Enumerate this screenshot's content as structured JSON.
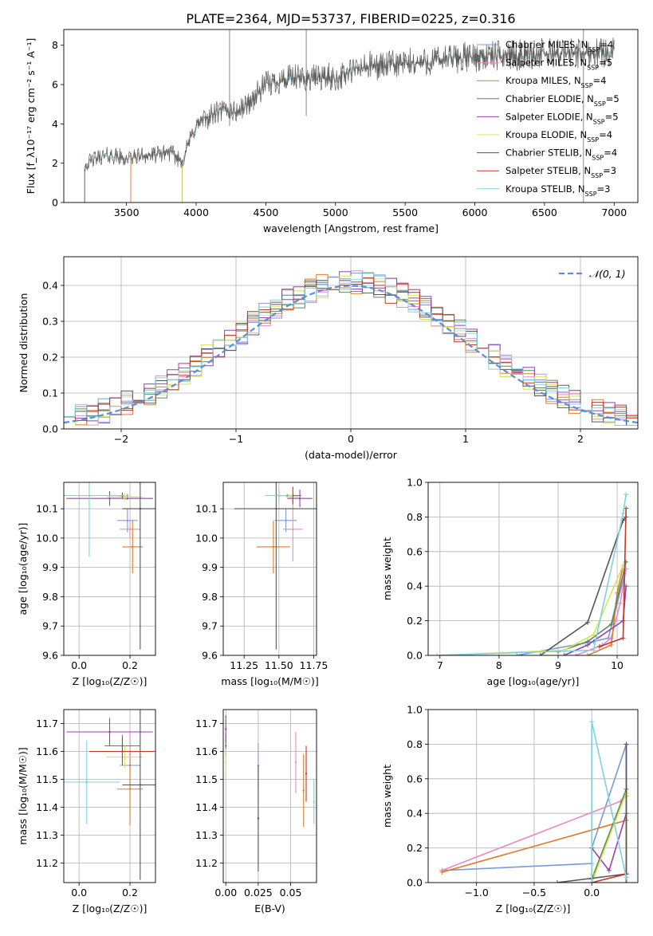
{
  "page": {
    "title": "PLATE=2364, MJD=53737, FIBERID=0225, z=0.316"
  },
  "colors": {
    "chabrier_miles": "#7b9bd6",
    "salpeter_miles": "#e78ac3",
    "kroupa_miles": "#e07a2a",
    "chabrier_elodie": "#5a8a5a",
    "salpeter_elodie": "#9b3fb5",
    "kroupa_elodie": "#d8e35a",
    "chabrier_stelib": "#555555",
    "salpeter_stelib": "#c0392b",
    "kroupa_stelib": "#7fd0e0",
    "gaussian": "#5b8ddb",
    "grid": "#b0b0b0"
  },
  "chart_data": [
    {
      "id": "spectrum",
      "type": "line",
      "xlabel": "wavelength [Angstrom, rest frame]",
      "ylabel": "Flux [f_λ10⁻¹⁷ erg cm⁻² s⁻¹ A⁻¹]",
      "xlim": [
        3050,
        7170
      ],
      "ylim": [
        0,
        8.8
      ],
      "xticks": [
        3500,
        4000,
        4500,
        5000,
        5500,
        6000,
        6500,
        7000
      ],
      "yticks": [
        0,
        2,
        4,
        6,
        8
      ],
      "grid": false,
      "legend_position": "top-right",
      "continuum": {
        "x": [
          3200,
          3300,
          3400,
          3500,
          3600,
          3700,
          3800,
          3900,
          3950,
          4000,
          4100,
          4200,
          4300,
          4400,
          4500,
          4600,
          4700,
          4800,
          4900,
          5000,
          5200,
          5400,
          5600,
          5800,
          6000,
          6200,
          6400,
          6600,
          6800,
          7000
        ],
        "y": [
          1.9,
          2.3,
          2.4,
          2.2,
          2.4,
          2.4,
          2.6,
          2.1,
          3.1,
          3.9,
          4.4,
          4.7,
          4.6,
          5.2,
          6.0,
          6.2,
          6.3,
          6.3,
          6.4,
          6.3,
          6.9,
          7.0,
          7.1,
          7.3,
          7.4,
          7.5,
          7.5,
          7.6,
          7.6,
          7.7
        ]
      },
      "series": [
        {
          "name": "Chabrier MILES, N_SSP=4",
          "label": "Chabrier MILES, N",
          "sub": "SSP",
          "suffix": "=4",
          "color_key": "chabrier_miles",
          "xstart": 3530
        },
        {
          "name": "Salpeter MILES, N_SSP=5",
          "label": "Salpeter MILES, N",
          "sub": "SSP",
          "suffix": "=5",
          "color_key": "salpeter_miles",
          "xstart": 3530
        },
        {
          "name": "Kroupa MILES, N_SSP=4",
          "label": "Kroupa MILES, N",
          "sub": "SSP",
          "suffix": "=4",
          "color_key": "kroupa_miles",
          "xstart": 3530
        },
        {
          "name": "Chabrier ELODIE, N_SSP=5",
          "label": "Chabrier ELODIE, N",
          "sub": "SSP",
          "suffix": "=5",
          "color_key": "chabrier_elodie",
          "xstart": 3900
        },
        {
          "name": "Salpeter ELODIE, N_SSP=5",
          "label": "Salpeter ELODIE, N",
          "sub": "SSP",
          "suffix": "=5",
          "color_key": "salpeter_elodie",
          "xstart": 3900
        },
        {
          "name": "Kroupa ELODIE, N_SSP=4",
          "label": "Kroupa ELODIE, N",
          "sub": "SSP",
          "suffix": "=4",
          "color_key": "kroupa_elodie",
          "xstart": 3900
        },
        {
          "name": "Chabrier STELIB, N_SSP=4",
          "label": "Chabrier STELIB, N",
          "sub": "SSP",
          "suffix": "=4",
          "color_key": "chabrier_stelib",
          "xstart": 3200
        },
        {
          "name": "Salpeter STELIB, N_SSP=3",
          "label": "Salpeter STELIB, N",
          "sub": "SSP",
          "suffix": "=3",
          "color_key": "salpeter_stelib",
          "xstart": 3200
        },
        {
          "name": "Kroupa STELIB, N_SSP=3",
          "label": "Kroupa STELIB, N",
          "sub": "SSP",
          "suffix": "=3",
          "color_key": "kroupa_stelib",
          "xstart": 3200
        }
      ]
    },
    {
      "id": "residuals",
      "type": "line",
      "xlabel": "(data-model)/error",
      "ylabel": "Normed distribution",
      "xlim": [
        -2.5,
        2.5
      ],
      "ylim": [
        0,
        0.48
      ],
      "xticks": [
        -2,
        -1,
        0,
        1,
        2
      ],
      "yticks": [
        0.0,
        0.1,
        0.2,
        0.3,
        0.4
      ],
      "grid": true,
      "legend_position": "top-right",
      "reference": {
        "name": "N(0,1)",
        "label": "𝒩(0, 1)",
        "mean": 0,
        "sigma": 1
      },
      "bin_width": 0.1,
      "histogram_series_colors": [
        "chabrier_miles",
        "salpeter_miles",
        "kroupa_miles",
        "chabrier_elodie",
        "salpeter_elodie",
        "kroupa_elodie",
        "chabrier_stelib",
        "salpeter_stelib",
        "kroupa_stelib"
      ]
    },
    {
      "id": "age-z",
      "type": "scatter",
      "xlabel": "Z [log₁₀(Z/Z☉)]",
      "ylabel": "age  [log₁₀(age/yr)]",
      "xlim": [
        -0.06,
        0.3
      ],
      "ylim": [
        9.6,
        10.19
      ],
      "xticks": [
        0.0,
        0.2
      ],
      "yticks": [
        9.6,
        9.7,
        9.8,
        9.9,
        10.0,
        10.1
      ],
      "grid": true,
      "points": [
        {
          "key": "chabrier_miles",
          "x": 0.19,
          "y": 10.06,
          "xerr": 0.04,
          "yerr": 0.04
        },
        {
          "key": "salpeter_miles",
          "x": 0.2,
          "y": 10.03,
          "xerr": 0.04,
          "yerr": 0.03
        },
        {
          "key": "kroupa_miles",
          "x": 0.21,
          "y": 9.97,
          "xerr": 0.04,
          "yerr": 0.09
        },
        {
          "key": "chabrier_elodie",
          "x": 0.19,
          "y": 10.14,
          "xerr": 0.04,
          "yerr": 0.01
        },
        {
          "key": "salpeter_elodie",
          "x": 0.12,
          "y": 10.135,
          "xerr": 0.17,
          "yerr": 0.025
        },
        {
          "key": "kroupa_elodie",
          "x": 0.18,
          "y": 10.14,
          "xerr": 0.07,
          "yerr": 0.01
        },
        {
          "key": "chabrier_stelib",
          "x": 0.24,
          "y": 10.1,
          "xerr": 0.07,
          "yerr": 0.48
        },
        {
          "key": "salpeter_stelib",
          "x": 0.17,
          "y": 10.145,
          "xerr": 0.01,
          "yerr": 0.01
        },
        {
          "key": "kroupa_stelib",
          "x": 0.04,
          "y": 10.145,
          "xerr": 0.14,
          "yerr": 0.21
        }
      ]
    },
    {
      "id": "age-mass",
      "type": "scatter",
      "xlabel": "mass [log₁₀(M/M☉)]",
      "ylabel": "",
      "xlim": [
        11.1,
        11.77
      ],
      "ylim": [
        9.6,
        10.19
      ],
      "xticks": [
        11.25,
        11.5,
        11.75
      ],
      "yticks": [
        9.6,
        9.7,
        9.8,
        9.9,
        10.0,
        10.1
      ],
      "grid": true,
      "points": [
        {
          "key": "chabrier_miles",
          "x": 11.55,
          "y": 10.06,
          "xerr": 0.08,
          "yerr": 0.04
        },
        {
          "key": "salpeter_miles",
          "x": 11.6,
          "y": 10.03,
          "xerr": 0.07,
          "yerr": 0.11
        },
        {
          "key": "kroupa_miles",
          "x": 11.46,
          "y": 9.97,
          "xerr": 0.12,
          "yerr": 0.09
        },
        {
          "key": "chabrier_elodie",
          "x": 11.56,
          "y": 10.145,
          "xerr": 0.1,
          "yerr": 0.005
        },
        {
          "key": "salpeter_elodie",
          "x": 11.65,
          "y": 10.135,
          "xerr": 0.09,
          "yerr": 0.03
        },
        {
          "key": "kroupa_elodie",
          "x": 11.6,
          "y": 10.14,
          "xerr": 0.05,
          "yerr": 0.01
        },
        {
          "key": "chabrier_stelib",
          "x": 11.48,
          "y": 10.1,
          "xerr": 0.3,
          "yerr": 0.48
        },
        {
          "key": "salpeter_stelib",
          "x": 11.6,
          "y": 10.145,
          "xerr": 0.01,
          "yerr": 0.03
        },
        {
          "key": "kroupa_stelib",
          "x": 11.5,
          "y": 10.145,
          "xerr": 0.1,
          "yerr": 0.02
        }
      ]
    },
    {
      "id": "weight-age",
      "type": "line",
      "xlabel": "age  [log₁₀(age/yr)]",
      "ylabel": "mass weight",
      "xlim": [
        6.8,
        10.35
      ],
      "ylim": [
        0,
        1.0
      ],
      "xticks": [
        7,
        8,
        9,
        10
      ],
      "yticks": [
        0.0,
        0.2,
        0.4,
        0.6,
        0.8,
        1.0
      ],
      "grid": true,
      "series": [
        {
          "key": "chabrier_miles",
          "x": [
            8.3,
            9.6,
            9.85,
            10.0,
            10.15
          ],
          "y": [
            0.0,
            0.08,
            0.1,
            0.3,
            0.5
          ]
        },
        {
          "key": "salpeter_miles",
          "x": [
            9.3,
            9.75,
            9.9,
            10.05,
            10.15
          ],
          "y": [
            0.0,
            0.06,
            0.1,
            0.3,
            0.5
          ]
        },
        {
          "key": "kroupa_miles",
          "x": [
            9.5,
            9.9,
            10.0,
            10.1
          ],
          "y": [
            0.0,
            0.06,
            0.36,
            0.52
          ]
        },
        {
          "key": "chabrier_elodie",
          "x": [
            9.0,
            9.5,
            9.9,
            10.15
          ],
          "y": [
            0.02,
            0.08,
            0.18,
            0.54
          ]
        },
        {
          "key": "salpeter_elodie",
          "x": [
            9.1,
            9.5,
            10.1,
            10.15
          ],
          "y": [
            0.0,
            0.06,
            0.2,
            0.4
          ]
        },
        {
          "key": "kroupa_elodie",
          "x": [
            7.0,
            9.1,
            9.6,
            10.1
          ],
          "y": [
            0.0,
            0.03,
            0.12,
            0.52
          ]
        },
        {
          "key": "chabrier_stelib",
          "x": [
            8.7,
            9.5,
            10.1,
            10.15
          ],
          "y": [
            0.0,
            0.19,
            0.78,
            0.8
          ]
        },
        {
          "key": "salpeter_stelib",
          "x": [
            9.7,
            10.1,
            10.15
          ],
          "y": [
            0.05,
            0.1,
            0.85
          ]
        },
        {
          "key": "kroupa_stelib",
          "x": [
            6.95,
            9.6,
            10.1,
            10.15
          ],
          "y": [
            0.0,
            0.03,
            0.82,
            0.93
          ]
        }
      ]
    },
    {
      "id": "mass-z",
      "type": "scatter",
      "xlabel": "Z [log₁₀(Z/Z☉)]",
      "ylabel": "mass [log₁₀(M/M☉)]",
      "xlim": [
        -0.06,
        0.3
      ],
      "ylim": [
        11.13,
        11.75
      ],
      "xticks": [
        0.0,
        0.2
      ],
      "yticks": [
        11.2,
        11.3,
        11.4,
        11.5,
        11.6,
        11.7
      ],
      "grid": true,
      "points": [
        {
          "key": "chabrier_miles",
          "x": 0.2,
          "y": 11.55,
          "xerr": 0.04,
          "yerr": 0.08
        },
        {
          "key": "salpeter_miles",
          "x": 0.2,
          "y": 11.6,
          "xerr": 0.04,
          "yerr": 0.07
        },
        {
          "key": "kroupa_miles",
          "x": 0.2,
          "y": 11.465,
          "xerr": 0.05,
          "yerr": 0.13
        },
        {
          "key": "chabrier_elodie",
          "x": 0.17,
          "y": 11.62,
          "xerr": 0.07,
          "yerr": 0.04
        },
        {
          "key": "salpeter_elodie",
          "x": 0.12,
          "y": 11.67,
          "xerr": 0.17,
          "yerr": 0.05
        },
        {
          "key": "kroupa_elodie",
          "x": 0.18,
          "y": 11.58,
          "xerr": 0.07,
          "yerr": 0.04
        },
        {
          "key": "chabrier_stelib",
          "x": 0.24,
          "y": 11.48,
          "xerr": 0.07,
          "yerr": 0.34
        },
        {
          "key": "salpeter_stelib",
          "x": 0.17,
          "y": 11.6,
          "xerr": 0.13,
          "yerr": 0.05
        },
        {
          "key": "kroupa_stelib",
          "x": 0.03,
          "y": 11.49,
          "xerr": 0.13,
          "yerr": 0.15
        }
      ]
    },
    {
      "id": "mass-ebv",
      "type": "scatter",
      "xlabel": "E(B-V)",
      "ylabel": "",
      "xlim": [
        -0.002,
        0.07
      ],
      "ylim": [
        11.13,
        11.75
      ],
      "xticks": [
        0.0,
        0.025,
        0.05
      ],
      "xticklabels": [
        "0.00",
        "0.025",
        "0.05"
      ],
      "yticks": [
        11.2,
        11.3,
        11.4,
        11.5,
        11.6,
        11.7
      ],
      "grid": true,
      "points": [
        {
          "key": "chabrier_miles",
          "x": 0.025,
          "y": 11.55,
          "xerr": 0,
          "yerr": 0.08
        },
        {
          "key": "salpeter_miles",
          "x": 0.054,
          "y": 11.56,
          "xerr": 0,
          "yerr": 0.11
        },
        {
          "key": "kroupa_miles",
          "x": 0.06,
          "y": 11.46,
          "xerr": 0,
          "yerr": 0.13
        },
        {
          "key": "chabrier_elodie",
          "x": 0.0,
          "y": 11.62,
          "xerr": 0,
          "yerr": 0.04
        },
        {
          "key": "salpeter_elodie",
          "x": 0.0,
          "y": 11.68,
          "xerr": 0,
          "yerr": 0.05
        },
        {
          "key": "kroupa_elodie",
          "x": 0.0,
          "y": 11.56,
          "xerr": 0,
          "yerr": 0.05
        },
        {
          "key": "chabrier_stelib",
          "x": 0.025,
          "y": 11.36,
          "xerr": 0,
          "yerr": 0.19
        },
        {
          "key": "salpeter_stelib",
          "x": 0.062,
          "y": 11.52,
          "xerr": 0,
          "yerr": 0.1
        },
        {
          "key": "kroupa_stelib",
          "x": 0.068,
          "y": 11.42,
          "xerr": 0,
          "yerr": 0.08
        }
      ]
    },
    {
      "id": "weight-z",
      "type": "line",
      "xlabel": "Z [log₁₀(Z/Z☉)]",
      "ylabel": "mass weight",
      "xlim": [
        -1.42,
        0.4
      ],
      "ylim": [
        0,
        1.0
      ],
      "xticks": [
        -1.0,
        -0.5,
        0.0
      ],
      "yticks": [
        0.0,
        0.2,
        0.4,
        0.6,
        0.8,
        1.0
      ],
      "grid": true,
      "series": [
        {
          "key": "chabrier_miles",
          "x": [
            -1.3,
            0.0,
            0.0,
            0.3,
            0.3
          ],
          "y": [
            0.07,
            0.11,
            0.2,
            0.8,
            0.05
          ]
        },
        {
          "key": "salpeter_miles",
          "x": [
            -1.3,
            0.25,
            0.3
          ],
          "y": [
            0.07,
            0.47,
            0.5
          ]
        },
        {
          "key": "kroupa_miles",
          "x": [
            -1.3,
            0.3
          ],
          "y": [
            0.06,
            0.36
          ]
        },
        {
          "key": "chabrier_elodie",
          "x": [
            0.0,
            0.3,
            0.3
          ],
          "y": [
            0.02,
            0.54,
            0.0
          ]
        },
        {
          "key": "salpeter_elodie",
          "x": [
            0.0,
            0.15,
            0.3,
            0.3
          ],
          "y": [
            0.2,
            0.07,
            0.4,
            0.0
          ]
        },
        {
          "key": "kroupa_elodie",
          "x": [
            0.0,
            0.0,
            0.3,
            0.3
          ],
          "y": [
            0.05,
            0.0,
            0.52,
            0.03
          ]
        },
        {
          "key": "chabrier_stelib",
          "x": [
            -0.3,
            0.3,
            0.3
          ],
          "y": [
            0.0,
            0.05,
            0.8
          ]
        },
        {
          "key": "salpeter_stelib",
          "x": [
            0.0,
            0.3
          ],
          "y": [
            0.0,
            0.05
          ]
        },
        {
          "key": "kroupa_stelib",
          "x": [
            0.0,
            0.0,
            0.3
          ],
          "y": [
            0.0,
            0.93,
            0.03
          ]
        }
      ]
    }
  ]
}
